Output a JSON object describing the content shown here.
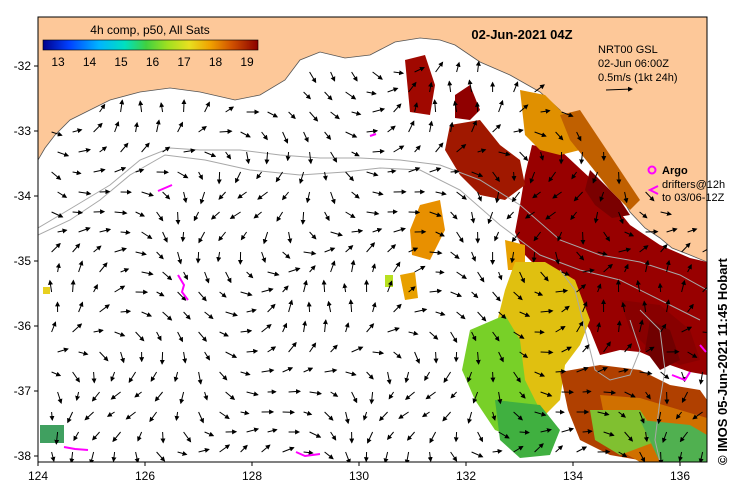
{
  "map": {
    "title_left": "4h comp, p50, All Sats",
    "date_title": "02-Jun-2021 04Z",
    "colorbar": {
      "ticks": [
        "13",
        "14",
        "15",
        "16",
        "17",
        "18",
        "19"
      ],
      "colors": [
        "#00008b",
        "#0040ff",
        "#00b4ff",
        "#00e0c0",
        "#40d040",
        "#a0e020",
        "#e8e020",
        "#f0a000",
        "#d05000",
        "#a00000",
        "#800000"
      ]
    },
    "land_color": "#fdc899",
    "ssh_label": {
      "line1": "NRT00 GSL",
      "line2": "02-Jun 06:00Z",
      "line3": "0.5m/s (1kt 24h)"
    },
    "legend": {
      "argo_label": "Argo",
      "drifters_label": "drifters@12h",
      "drifters_range": "to 03/06-12Z",
      "argo_color": "#ff00ff"
    },
    "credit": "© IMOS 05-Jun-2021 11:45 Hobart",
    "axes": {
      "x_ticks": [
        "124",
        "126",
        "128",
        "130",
        "132",
        "134",
        "136"
      ],
      "y_ticks": [
        "-32",
        "-33",
        "-34",
        "-35",
        "-36",
        "-37",
        "-38"
      ]
    }
  }
}
